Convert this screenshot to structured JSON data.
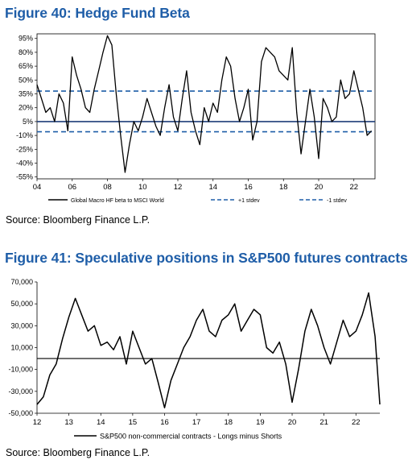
{
  "figure40": {
    "title": "Figure 40: Hedge Fund Beta",
    "source": "Source: Bloomberg Finance L.P."
  },
  "figure41": {
    "title": "Figure 41: Speculative positions in S&P500 futures contracts",
    "source": "Source: Bloomberg Finance L.P."
  },
  "chart_data": [
    {
      "type": "line",
      "title": "Figure 40: Hedge Fund Beta",
      "x_tick_labels": [
        "04",
        "06",
        "08",
        "10",
        "12",
        "14",
        "16",
        "18",
        "20",
        "22"
      ],
      "y_tick_labels": [
        "95%",
        "80%",
        "65%",
        "50%",
        "35%",
        "20%",
        "5%",
        "-10%",
        "-25%",
        "-40%",
        "-55%"
      ],
      "xlim": [
        2004,
        2023.2
      ],
      "ylim": [
        -57,
        100
      ],
      "legend_position": "bottom",
      "grid": false,
      "series": [
        {
          "name": "Global Macro HF beta to MSCI World",
          "color": "#000000",
          "x": [
            2004.0,
            2004.25,
            2004.5,
            2004.75,
            2005.0,
            2005.25,
            2005.5,
            2005.75,
            2006.0,
            2006.25,
            2006.5,
            2006.75,
            2007.0,
            2007.25,
            2007.5,
            2007.75,
            2008.0,
            2008.25,
            2008.5,
            2008.75,
            2009.0,
            2009.25,
            2009.5,
            2009.75,
            2010.0,
            2010.25,
            2010.5,
            2010.75,
            2011.0,
            2011.25,
            2011.5,
            2011.75,
            2012.0,
            2012.25,
            2012.5,
            2012.75,
            2013.0,
            2013.25,
            2013.5,
            2013.75,
            2014.0,
            2014.25,
            2014.5,
            2014.75,
            2015.0,
            2015.25,
            2015.5,
            2015.75,
            2016.0,
            2016.25,
            2016.5,
            2016.75,
            2017.0,
            2017.25,
            2017.5,
            2017.75,
            2018.0,
            2018.25,
            2018.5,
            2018.75,
            2019.0,
            2019.25,
            2019.5,
            2019.75,
            2020.0,
            2020.25,
            2020.5,
            2020.75,
            2021.0,
            2021.25,
            2021.5,
            2021.75,
            2022.0,
            2022.25,
            2022.5,
            2022.75,
            2023.0
          ],
          "y": [
            45,
            30,
            15,
            20,
            5,
            35,
            25,
            -5,
            75,
            55,
            40,
            20,
            15,
            40,
            60,
            80,
            98,
            88,
            35,
            -10,
            -50,
            -20,
            5,
            -5,
            10,
            30,
            15,
            0,
            -10,
            20,
            45,
            10,
            -5,
            30,
            60,
            15,
            -5,
            -20,
            20,
            5,
            25,
            15,
            50,
            75,
            65,
            30,
            5,
            20,
            40,
            -15,
            5,
            70,
            85,
            80,
            75,
            60,
            55,
            50,
            85,
            15,
            -30,
            5,
            40,
            10,
            -35,
            30,
            20,
            5,
            10,
            50,
            30,
            35,
            60,
            40,
            20,
            -10,
            -5
          ]
        }
      ],
      "reference_lines": [
        {
          "name": "+1 stdev",
          "value": 38,
          "color": "#1f5ea8",
          "style": "dashed"
        },
        {
          "name": "-1 stdev",
          "value": -6,
          "color": "#1f5ea8",
          "style": "dashed"
        },
        {
          "name": "",
          "value": 5,
          "color": "#1f3f7a",
          "style": "solid"
        }
      ]
    },
    {
      "type": "line",
      "title": "Figure 41: Speculative positions in S&P500 futures contracts",
      "x_tick_labels": [
        "12",
        "13",
        "14",
        "15",
        "16",
        "17",
        "18",
        "19",
        "20",
        "21",
        "22"
      ],
      "y_tick_labels": [
        "70,000",
        "50,000",
        "30,000",
        "10,000",
        "-10,000",
        "-30,000",
        "-50,000"
      ],
      "xlim": [
        2012,
        2022.75
      ],
      "ylim": [
        -50000,
        70000
      ],
      "legend_position": "bottom",
      "grid": false,
      "series": [
        {
          "name": "S&P500 non-commercial contracts - Longs minus Shorts",
          "color": "#000000",
          "x": [
            2012.0,
            2012.2,
            2012.4,
            2012.6,
            2012.8,
            2013.0,
            2013.2,
            2013.4,
            2013.6,
            2013.8,
            2014.0,
            2014.2,
            2014.4,
            2014.6,
            2014.8,
            2015.0,
            2015.2,
            2015.4,
            2015.6,
            2015.8,
            2016.0,
            2016.2,
            2016.4,
            2016.6,
            2016.8,
            2017.0,
            2017.2,
            2017.4,
            2017.6,
            2017.8,
            2018.0,
            2018.2,
            2018.4,
            2018.6,
            2018.8,
            2019.0,
            2019.2,
            2019.4,
            2019.6,
            2019.8,
            2020.0,
            2020.2,
            2020.4,
            2020.6,
            2020.8,
            2021.0,
            2021.2,
            2021.4,
            2021.6,
            2021.8,
            2022.0,
            2022.2,
            2022.4,
            2022.6,
            2022.75
          ],
          "y": [
            -42000,
            -35000,
            -15000,
            -5000,
            18000,
            38000,
            55000,
            40000,
            25000,
            30000,
            12000,
            15000,
            8000,
            20000,
            -5000,
            25000,
            10000,
            -5000,
            0,
            -22000,
            -45000,
            -20000,
            -5000,
            10000,
            20000,
            35000,
            45000,
            25000,
            20000,
            35000,
            40000,
            50000,
            25000,
            35000,
            45000,
            40000,
            10000,
            5000,
            15000,
            -5000,
            -40000,
            -10000,
            25000,
            45000,
            30000,
            10000,
            -5000,
            15000,
            35000,
            20000,
            25000,
            40000,
            60000,
            20000,
            -42000
          ]
        }
      ],
      "reference_lines": [
        {
          "name": "",
          "value": 0,
          "color": "#000000",
          "style": "solid"
        }
      ]
    }
  ]
}
